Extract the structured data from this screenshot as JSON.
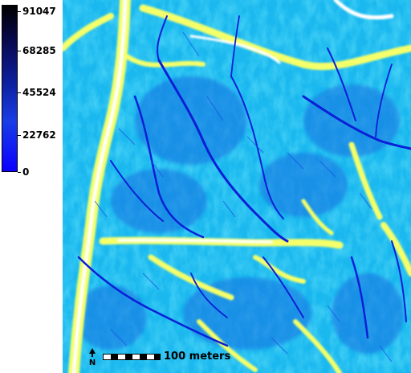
{
  "legend": {
    "max_label": "91047",
    "tick_68285": "68285",
    "tick_45524": "45524",
    "tick_22762": "22762",
    "min_label": "0",
    "colors": {
      "high": "#000000",
      "mid": "#0b1f9a",
      "low": "#0a00ff"
    }
  },
  "map": {
    "ramp_colors": [
      "#0a1fd6",
      "#1a73e8",
      "#19b8f0",
      "#7fe6f2",
      "#f4ff6a",
      "#ffffff"
    ],
    "north_arrow_icon": "north-arrow-icon",
    "scale_label": "100 meters"
  }
}
